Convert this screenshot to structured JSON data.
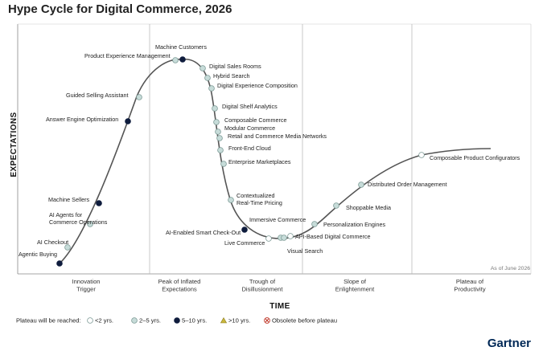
{
  "chart_data": {
    "type": "hype-cycle",
    "title": "Hype Cycle for Digital Commerce, 2026",
    "xlabel": "TIME",
    "ylabel": "EXPECTATIONS",
    "as_of": "As of June 2026",
    "phases": [
      {
        "name": "Innovation\nTrigger"
      },
      {
        "name": "Peak of Inflated\nExpectations"
      },
      {
        "name": "Trough of\nDisillusionment"
      },
      {
        "name": "Slope of\nEnlightenment"
      },
      {
        "name": "Plateau of\nProductivity"
      }
    ],
    "legend": {
      "label": "Plateau will be reached:",
      "items": [
        {
          "key": "lt2",
          "label": "<2 yrs."
        },
        {
          "key": "2to5",
          "label": "2–5 yrs."
        },
        {
          "key": "5to10",
          "label": "5–10 yrs."
        },
        {
          "key": "gt10",
          "label": ">10 yrs."
        },
        {
          "key": "obsolete",
          "label": "Obsolete before plateau"
        }
      ]
    },
    "series": [
      {
        "name": "Agentic Buying",
        "cat": "5to10",
        "lines": [
          "Agentic Buying"
        ]
      },
      {
        "name": "AI Checkout",
        "cat": "2to5",
        "lines": [
          "AI Checkout"
        ]
      },
      {
        "name": "AI Agents for Commerce Operations",
        "cat": "2to5",
        "lines": [
          "AI Agents for",
          "Commerce Operations"
        ]
      },
      {
        "name": "Machine Sellers",
        "cat": "5to10",
        "lines": [
          "Machine Sellers"
        ]
      },
      {
        "name": "Answer Engine Optimization",
        "cat": "5to10",
        "lines": [
          "Answer Engine Optimization"
        ]
      },
      {
        "name": "Guided Selling Assistant",
        "cat": "2to5",
        "lines": [
          "Guided Selling Assistant"
        ]
      },
      {
        "name": "Product Experience Management",
        "cat": "2to5",
        "lines": [
          "Product Experience Management"
        ]
      },
      {
        "name": "Machine Customers",
        "cat": "5to10",
        "lines": [
          "Machine Customers"
        ]
      },
      {
        "name": "Digital Sales Rooms",
        "cat": "2to5",
        "lines": [
          "Digital Sales Rooms"
        ]
      },
      {
        "name": "Hybrid Search",
        "cat": "2to5",
        "lines": [
          "Hybrid Search"
        ]
      },
      {
        "name": "Digital Experience Composition",
        "cat": "2to5",
        "lines": [
          "Digital Experience Composition"
        ]
      },
      {
        "name": "Digital Shelf Analytics",
        "cat": "2to5",
        "lines": [
          "Digital Shelf Analytics"
        ]
      },
      {
        "name": "Composable Commerce",
        "cat": "2to5",
        "lines": [
          "Composable Commerce"
        ]
      },
      {
        "name": "Modular Commerce",
        "cat": "2to5",
        "lines": [
          "Modular Commerce"
        ]
      },
      {
        "name": "Retail and Commerce Media Networks",
        "cat": "2to5",
        "lines": [
          "Retail and Commerce Media Networks"
        ]
      },
      {
        "name": "Front-End Cloud",
        "cat": "2to5",
        "lines": [
          "Front-End Cloud"
        ]
      },
      {
        "name": "Enterprise Marketplaces",
        "cat": "2to5",
        "lines": [
          "Enterprise Marketplaces"
        ]
      },
      {
        "name": "Contextualized Real-Time Pricing",
        "cat": "2to5",
        "lines": [
          "Contextualized",
          "Real-Time Pricing"
        ]
      },
      {
        "name": "AI-Enabled Smart Check-Out",
        "cat": "5to10",
        "lines": [
          "AI-Enabled Smart Check-Out"
        ]
      },
      {
        "name": "Live Commerce",
        "cat": "lt2",
        "lines": [
          "Live Commerce"
        ]
      },
      {
        "name": "Immersive Commerce",
        "cat": "2to5",
        "lines": [
          "Immersive Commerce"
        ]
      },
      {
        "name": "Visual Search",
        "cat": "2to5",
        "lines": [
          "Visual Search"
        ]
      },
      {
        "name": "API-Based Digital Commerce",
        "cat": "lt2",
        "lines": [
          "API-Based Digital Commerce"
        ]
      },
      {
        "name": "Personalization Engines",
        "cat": "2to5",
        "lines": [
          "Personalization Engines"
        ]
      },
      {
        "name": "Shoppable Media",
        "cat": "2to5",
        "lines": [
          "Shoppable Media"
        ]
      },
      {
        "name": "Distributed Order Management",
        "cat": "2to5",
        "lines": [
          "Distributed Order Management"
        ]
      },
      {
        "name": "Composable Product Configurators",
        "cat": "lt2",
        "lines": [
          "Composable Product Configurators"
        ]
      }
    ],
    "colors": {
      "curve": "#555555",
      "lt2": "#ffffff",
      "2to5": "#c7dcd9",
      "5to10": "#0f1c3d",
      "gt10": "#c9b73c",
      "obsolete": "#c0392b",
      "phase_divider": "#bbbbbb"
    }
  },
  "brand": "Gartner"
}
